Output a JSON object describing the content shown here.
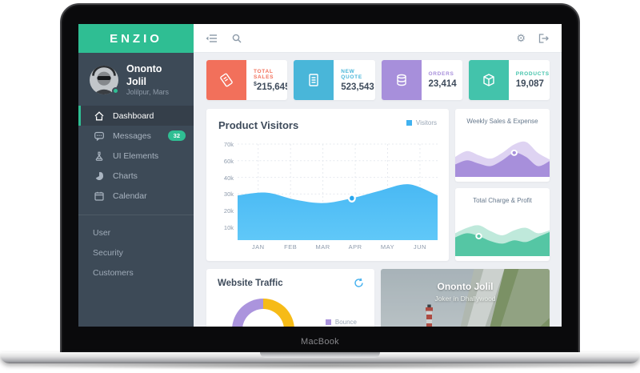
{
  "device": {
    "label": "MacBook"
  },
  "app": {
    "logo": "ENZIO"
  },
  "sidebar": {
    "user": {
      "name": "Ononto Jolil",
      "location": "Jolilpur, Mars"
    },
    "items": [
      {
        "label": "Dashboard",
        "active": true
      },
      {
        "label": "Messages",
        "badge": "32"
      },
      {
        "label": "UI Elements"
      },
      {
        "label": "Charts"
      },
      {
        "label": "Calendar"
      }
    ],
    "secondary": [
      {
        "label": "User"
      },
      {
        "label": "Security"
      },
      {
        "label": "Customers"
      }
    ]
  },
  "stats": [
    {
      "label": "TOTAL SALES",
      "prefix": "$",
      "value": "215,645",
      "color": "#f2705b",
      "icon": "ticket-icon"
    },
    {
      "label": "NEW QUOTE",
      "prefix": "",
      "value": "523,543",
      "color": "#49b6d9",
      "icon": "document-icon"
    },
    {
      "label": "ORDERS",
      "prefix": "",
      "value": "23,414",
      "color": "#a78fdb",
      "icon": "database-icon"
    },
    {
      "label": "PRODUCTS",
      "prefix": "",
      "value": "19,087",
      "color": "#43c3ab",
      "icon": "cube-icon"
    }
  ],
  "chart_data": [
    {
      "id": "product-visitors",
      "type": "area",
      "title": "Product Visitors",
      "legend": [
        {
          "label": "Visitors",
          "color": "#41b2f0"
        }
      ],
      "x_labels": [
        "JAN",
        "FEB",
        "MAR",
        "APR",
        "MAY",
        "JUN"
      ],
      "y_tick_labels": [
        "70k",
        "60k",
        "40k",
        "30k",
        "20k",
        "10k"
      ],
      "ylim_k": [
        10,
        70
      ],
      "grid": true,
      "legend_position": "top-right",
      "series": [
        {
          "name": "Visitors",
          "values_k": [
            33,
            35,
            30,
            27.5,
            31,
            36.5,
            41,
            33
          ]
        }
      ],
      "month_values_k": [
        34,
        30,
        27.5,
        31,
        37,
        40
      ],
      "marker": {
        "x_label": "APR",
        "value_k": 31,
        "point_index": 4
      },
      "colors": {
        "area_top": "#49b9f4",
        "area_bottom": "#60c8f8",
        "dot": "#29a7ee"
      }
    },
    {
      "id": "weekly-sales-expense",
      "type": "area",
      "title": "Weekly Sales & Expense",
      "series": [
        {
          "name": "expense-back",
          "color": "#ded3f2",
          "values_pct": [
            48,
            62,
            52,
            44,
            58,
            78,
            84,
            58,
            42
          ]
        },
        {
          "name": "sales-front",
          "color": "#a78fdb",
          "values_pct": [
            30,
            40,
            32,
            26,
            40,
            58,
            48,
            26,
            38
          ]
        }
      ],
      "marker_index": 5
    },
    {
      "id": "total-charge-profit",
      "type": "area",
      "title": "Total Charge & Profit",
      "series": [
        {
          "name": "charge-back",
          "color": "#bfe9db",
          "values_pct": [
            55,
            68,
            74,
            60,
            50,
            62,
            68,
            55,
            62
          ]
        },
        {
          "name": "profit-front",
          "color": "#55c6a4",
          "values_pct": [
            45,
            55,
            48,
            36,
            30,
            38,
            34,
            46,
            58
          ]
        }
      ],
      "marker_index": 2
    },
    {
      "id": "website-traffic-donut",
      "type": "pie",
      "title": "Website Traffic",
      "segments": [
        {
          "label": "Bounce",
          "color": "#ab94dd",
          "value_pct": 50
        },
        {
          "label": "",
          "color": "#f6bb17",
          "value_pct": 50
        }
      ],
      "legend_visible": [
        "Bounce"
      ]
    }
  ],
  "traffic": {
    "title": "Website Traffic",
    "legend_label": "Bounce"
  },
  "profile_card": {
    "name": "Ononto Jolil",
    "subtitle": "Joker in Dhallywood"
  }
}
